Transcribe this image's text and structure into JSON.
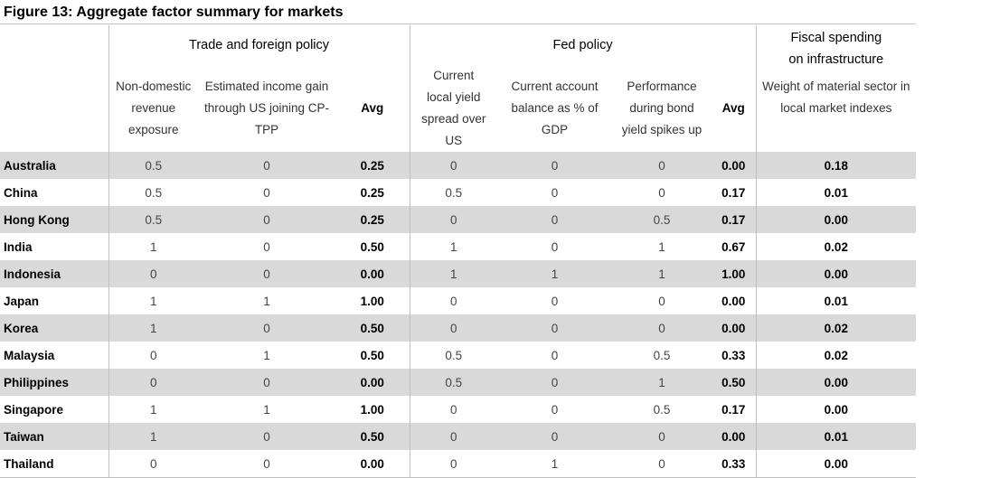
{
  "title": "Figure 13: Aggregate factor summary for markets",
  "groups": {
    "trade": "Trade and foreign policy",
    "fed": "Fed policy",
    "fiscal": "Fiscal spending on infrastructure"
  },
  "columns": [
    "Non-domestic revenue exposure",
    "Estimated income gain through US joining CP-TPP",
    "Avg",
    "Current local yield spread over US",
    "Current account balance as % of GDP",
    "Performance during bond yield spikes up",
    "Avg",
    "Weight of material sector in local market indexes"
  ],
  "rows": [
    [
      "Australia",
      "0.5",
      "0",
      "0.25",
      "0",
      "0",
      "0",
      "0.00",
      "0.18"
    ],
    [
      "China",
      "0.5",
      "0",
      "0.25",
      "0.5",
      "0",
      "0",
      "0.17",
      "0.01"
    ],
    [
      "Hong Kong",
      "0.5",
      "0",
      "0.25",
      "0",
      "0",
      "0.5",
      "0.17",
      "0.00"
    ],
    [
      "India",
      "1",
      "0",
      "0.50",
      "1",
      "0",
      "1",
      "0.67",
      "0.02"
    ],
    [
      "Indonesia",
      "0",
      "0",
      "0.00",
      "1",
      "1",
      "1",
      "1.00",
      "0.00"
    ],
    [
      "Japan",
      "1",
      "1",
      "1.00",
      "0",
      "0",
      "0",
      "0.00",
      "0.01"
    ],
    [
      "Korea",
      "1",
      "0",
      "0.50",
      "0",
      "0",
      "0",
      "0.00",
      "0.02"
    ],
    [
      "Malaysia",
      "0",
      "1",
      "0.50",
      "0.5",
      "0",
      "0.5",
      "0.33",
      "0.02"
    ],
    [
      "Philippines",
      "0",
      "0",
      "0.00",
      "0.5",
      "0",
      "1",
      "0.50",
      "0.00"
    ],
    [
      "Singapore",
      "1",
      "1",
      "1.00",
      "0",
      "0",
      "0.5",
      "0.17",
      "0.00"
    ],
    [
      "Taiwan",
      "1",
      "0",
      "0.50",
      "0",
      "0",
      "0",
      "0.00",
      "0.01"
    ],
    [
      "Thailand",
      "0",
      "0",
      "0.00",
      "0",
      "1",
      "0",
      "0.33",
      "0.00"
    ]
  ]
}
